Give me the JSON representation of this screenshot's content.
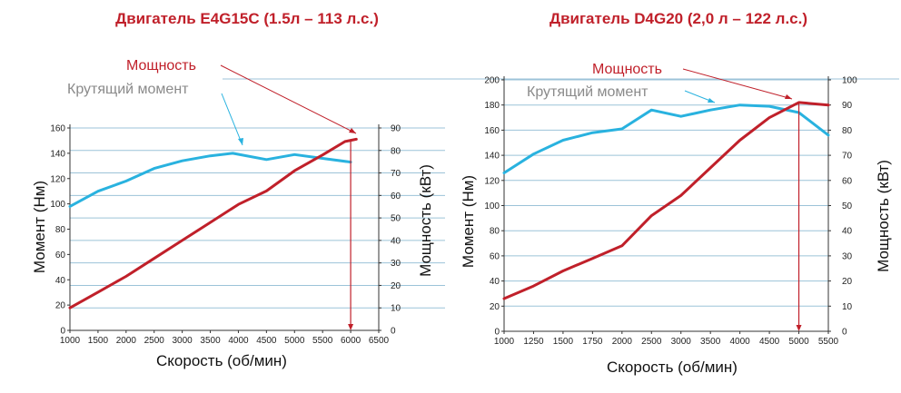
{
  "colors": {
    "torque": "#29b2df",
    "power": "#c0202a",
    "grid": "#9cc3d8",
    "axis": "#333333",
    "torque_annotation": "#8a8a8a",
    "power_annotation": "#c0202a"
  },
  "chart_data": [
    {
      "type": "line",
      "title": "Двигатель E4G15C (1.5л – 113 л.с.)",
      "xlabel": "Скорость (об/мин)",
      "ylabel_left": "Момент (Нм)",
      "ylabel_right": "Мощность (кВт)",
      "x_ticks": [
        "1000",
        "1500",
        "2000",
        "2500",
        "3000",
        "3500",
        "4000",
        "4500",
        "5000",
        "5500",
        "6000",
        "6500"
      ],
      "y_left_ticks": [
        "0",
        "20",
        "40",
        "60",
        "80",
        "100",
        "120",
        "140",
        "160"
      ],
      "y_right_ticks": [
        "0",
        "10",
        "20",
        "30",
        "40",
        "50",
        "60",
        "70",
        "80",
        "90"
      ],
      "xlim": [
        1000,
        6500
      ],
      "ylim_left": [
        0,
        160
      ],
      "ylim_right": [
        0,
        90
      ],
      "grid": true,
      "annotations": {
        "power": "Мощность",
        "torque": "Крутящий момент"
      },
      "marker_x": 6000,
      "series": [
        {
          "name": "Крутящий момент",
          "axis": "left",
          "x": [
            1000,
            1500,
            2000,
            2500,
            3000,
            3500,
            3900,
            4500,
            5000,
            5500,
            6000
          ],
          "y": [
            98,
            110,
            118,
            128,
            134,
            138,
            140,
            135,
            139,
            136,
            133
          ]
        },
        {
          "name": "Мощность",
          "axis": "right",
          "x": [
            1000,
            1500,
            2000,
            2500,
            3000,
            3500,
            4000,
            4500,
            5000,
            5500,
            5900,
            6100
          ],
          "y": [
            10,
            17,
            24,
            32,
            40,
            48,
            56,
            62,
            71,
            78,
            84,
            85
          ]
        }
      ]
    },
    {
      "type": "line",
      "title": "Двигатель D4G20 (2,0 л – 122 л.с.)",
      "xlabel": "Скорость (об/мин)",
      "ylabel_left": "Момент (Нм)",
      "ylabel_right": "Мощность (кВт)",
      "x_ticks": [
        "1000",
        "1250",
        "1500",
        "1750",
        "2000",
        "2500",
        "3000",
        "3500",
        "4000",
        "4500",
        "5000",
        "5500"
      ],
      "y_left_ticks": [
        "0",
        "20",
        "40",
        "60",
        "80",
        "100",
        "120",
        "140",
        "160",
        "180",
        "200"
      ],
      "y_right_ticks": [
        "0",
        "10",
        "20",
        "30",
        "40",
        "50",
        "60",
        "70",
        "80",
        "90",
        "100"
      ],
      "xlim": [
        1000,
        5500
      ],
      "ylim_left": [
        0,
        200
      ],
      "ylim_right": [
        0,
        100
      ],
      "grid": true,
      "annotations": {
        "power": "Мощность",
        "torque": "Крутящий момент"
      },
      "marker_x": 5000,
      "series": [
        {
          "name": "Крутящий момент",
          "axis": "left",
          "x": [
            1000,
            1250,
            1500,
            1750,
            2000,
            2500,
            3000,
            3500,
            4000,
            4500,
            5000,
            5500
          ],
          "y": [
            126,
            141,
            152,
            158,
            161,
            176,
            171,
            176,
            180,
            179,
            174,
            156
          ]
        },
        {
          "name": "Мощность",
          "axis": "right",
          "x": [
            1000,
            1250,
            1500,
            1750,
            2000,
            2500,
            3000,
            3500,
            4000,
            4500,
            5000,
            5500
          ],
          "y": [
            13,
            18,
            24,
            29,
            34,
            46,
            54,
            65,
            76,
            85,
            91,
            90
          ]
        }
      ]
    }
  ]
}
